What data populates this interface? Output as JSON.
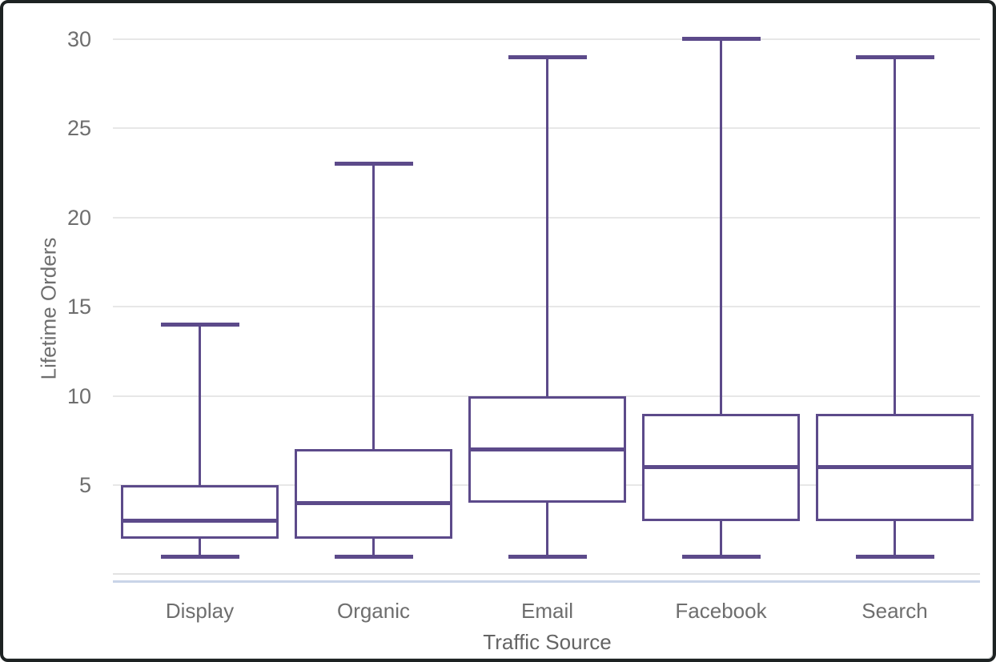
{
  "chart_data": {
    "type": "boxplot",
    "title": "",
    "xlabel": "Traffic Source",
    "ylabel": "Lifetime Orders",
    "categories": [
      "Display",
      "Organic",
      "Email",
      "Facebook",
      "Search"
    ],
    "boxes": [
      {
        "category": "Display",
        "min": 1,
        "q1": 2,
        "median": 3,
        "q3": 5,
        "max": 14
      },
      {
        "category": "Organic",
        "min": 1,
        "q1": 2,
        "median": 4,
        "q3": 7,
        "max": 23
      },
      {
        "category": "Email",
        "min": 1,
        "q1": 4,
        "median": 7,
        "q3": 10,
        "max": 29
      },
      {
        "category": "Facebook",
        "min": 1,
        "q1": 3,
        "median": 6,
        "q3": 9,
        "max": 30
      },
      {
        "category": "Search",
        "min": 1,
        "q1": 3,
        "median": 6,
        "q3": 9,
        "max": 29
      }
    ],
    "yticks": [
      5,
      10,
      15,
      20,
      25,
      30
    ],
    "ylim": [
      0,
      30
    ],
    "grid": true,
    "legend": false,
    "colors": {
      "box_stroke": "#5c4a8a",
      "gridline": "#e7e7e7",
      "zero_line": "#e2e2e2",
      "axis_baseline": "#c9d4e8",
      "tick_text": "#6e6e6e",
      "frame_border": "#1d2222",
      "background": "#ffffff"
    }
  }
}
